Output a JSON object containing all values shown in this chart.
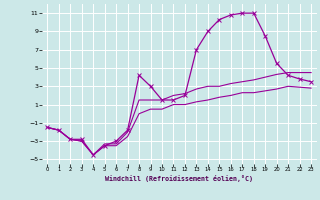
{
  "xlabel": "Windchill (Refroidissement éolien,°C)",
  "background_color": "#cce8e8",
  "grid_color": "#ffffff",
  "line_color": "#990099",
  "xlim": [
    -0.5,
    23.5
  ],
  "ylim": [
    -5.5,
    12.0
  ],
  "xticks": [
    0,
    1,
    2,
    3,
    4,
    5,
    6,
    7,
    8,
    9,
    10,
    11,
    12,
    13,
    14,
    15,
    16,
    17,
    18,
    19,
    20,
    21,
    22,
    23
  ],
  "yticks": [
    -5,
    -3,
    -1,
    1,
    3,
    5,
    7,
    9,
    11
  ],
  "line1_x": [
    0,
    1,
    2,
    3,
    4,
    5,
    6,
    7,
    8,
    9,
    10,
    11,
    12,
    13,
    14,
    15,
    16,
    17,
    18,
    19,
    20,
    21,
    22,
    23
  ],
  "line1_y": [
    -1.5,
    -1.8,
    -2.8,
    -2.8,
    -4.5,
    -3.5,
    -3.0,
    -1.8,
    4.2,
    3.0,
    1.5,
    1.5,
    2.0,
    7.0,
    9.0,
    10.3,
    10.8,
    11.0,
    11.0,
    8.5,
    5.5,
    4.2,
    3.8,
    3.5
  ],
  "line2_x": [
    0,
    1,
    2,
    3,
    4,
    5,
    6,
    7,
    8,
    9,
    10,
    11,
    12,
    13,
    14,
    15,
    16,
    17,
    18,
    19,
    20,
    21,
    22,
    23
  ],
  "line2_y": [
    -1.5,
    -1.8,
    -2.8,
    -3.0,
    -4.5,
    -3.3,
    -3.3,
    -2.0,
    1.5,
    1.5,
    1.5,
    2.0,
    2.2,
    2.7,
    3.0,
    3.0,
    3.3,
    3.5,
    3.7,
    4.0,
    4.3,
    4.5,
    4.5,
    4.5
  ],
  "line3_x": [
    0,
    1,
    2,
    3,
    4,
    5,
    6,
    7,
    8,
    9,
    10,
    11,
    12,
    13,
    14,
    15,
    16,
    17,
    18,
    19,
    20,
    21,
    22,
    23
  ],
  "line3_y": [
    -1.5,
    -1.8,
    -2.8,
    -3.0,
    -4.5,
    -3.5,
    -3.5,
    -2.5,
    0.0,
    0.5,
    0.5,
    1.0,
    1.0,
    1.3,
    1.5,
    1.8,
    2.0,
    2.3,
    2.3,
    2.5,
    2.7,
    3.0,
    2.9,
    2.8
  ]
}
